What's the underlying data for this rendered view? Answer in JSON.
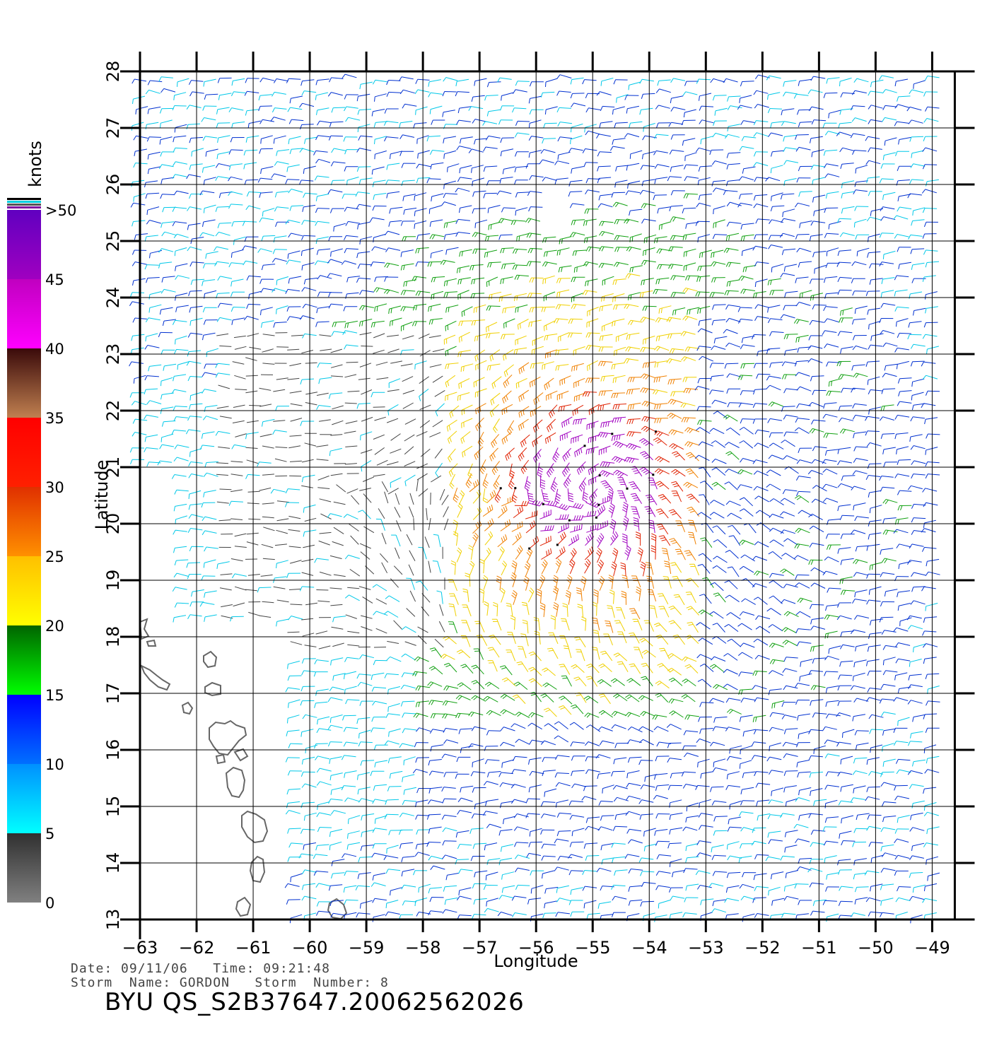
{
  "map": {
    "lon_ticks": [
      -63,
      -62,
      -61,
      -60,
      -59,
      -58,
      -57,
      -56,
      -55,
      -54,
      -53,
      -52,
      -51,
      -50,
      -49
    ],
    "lat_ticks": [
      13,
      14,
      15,
      16,
      17,
      18,
      19,
      20,
      21,
      22,
      23,
      24,
      25,
      26,
      27,
      28
    ],
    "lon_range": [
      -63,
      -48.6
    ],
    "lat_range": [
      13,
      28
    ],
    "xlabel": "Longitude",
    "ylabel": "Latitude",
    "grid": true,
    "storm_center": {
      "lon": -54.9,
      "lat": 20.6
    }
  },
  "legend": {
    "unit_label": "knots",
    "ticks": [
      {
        "label": ">50",
        "value": 50
      },
      {
        "label": "45",
        "value": 45
      },
      {
        "label": "40",
        "value": 40
      },
      {
        "label": "35",
        "value": 35
      },
      {
        "label": "30",
        "value": 30
      },
      {
        "label": "25",
        "value": 25
      },
      {
        "label": "20",
        "value": 20
      },
      {
        "label": "15",
        "value": 15
      },
      {
        "label": "10",
        "value": 10
      },
      {
        "label": "5",
        "value": 5
      },
      {
        "label": "0",
        "value": 0
      }
    ],
    "bands": [
      {
        "from": 0,
        "to": 5,
        "colors": [
          "#808080",
          "#303030"
        ]
      },
      {
        "from": 5,
        "to": 10,
        "colors": [
          "#00ffff",
          "#0090ff"
        ]
      },
      {
        "from": 10,
        "to": 15,
        "colors": [
          "#0070ff",
          "#0000ff"
        ]
      },
      {
        "from": 15,
        "to": 20,
        "colors": [
          "#00ff00",
          "#006400"
        ]
      },
      {
        "from": 20,
        "to": 25,
        "colors": [
          "#ffff00",
          "#ffc000"
        ]
      },
      {
        "from": 25,
        "to": 30,
        "colors": [
          "#ff9000",
          "#e03000"
        ]
      },
      {
        "from": 30,
        "to": 35,
        "colors": [
          "#ff2000",
          "#ff0000"
        ]
      },
      {
        "from": 35,
        "to": 40,
        "colors": [
          "#c08050",
          "#3a0a0a"
        ]
      },
      {
        "from": 40,
        "to": 45,
        "colors": [
          "#ff00ff",
          "#c000c0"
        ]
      },
      {
        "from": 45,
        "to": 50,
        "colors": [
          "#a000c0",
          "#6000c0"
        ]
      }
    ]
  },
  "info": {
    "date_line": "Date: 09/11/06   Time: 09:21:48",
    "storm_line": "Storm  Name: GORDON   Storm  Number: 8",
    "product_title": "BYU  QS_S2B37647.20062562026"
  },
  "colors": {
    "gray": "#444444",
    "cyan": "#00c8e8",
    "blue": "#0030d0",
    "green": "#10a010",
    "yellow": "#f0d000",
    "orange": "#f08000",
    "red": "#e02000",
    "purple": "#a000c0",
    "land": "#666666"
  }
}
